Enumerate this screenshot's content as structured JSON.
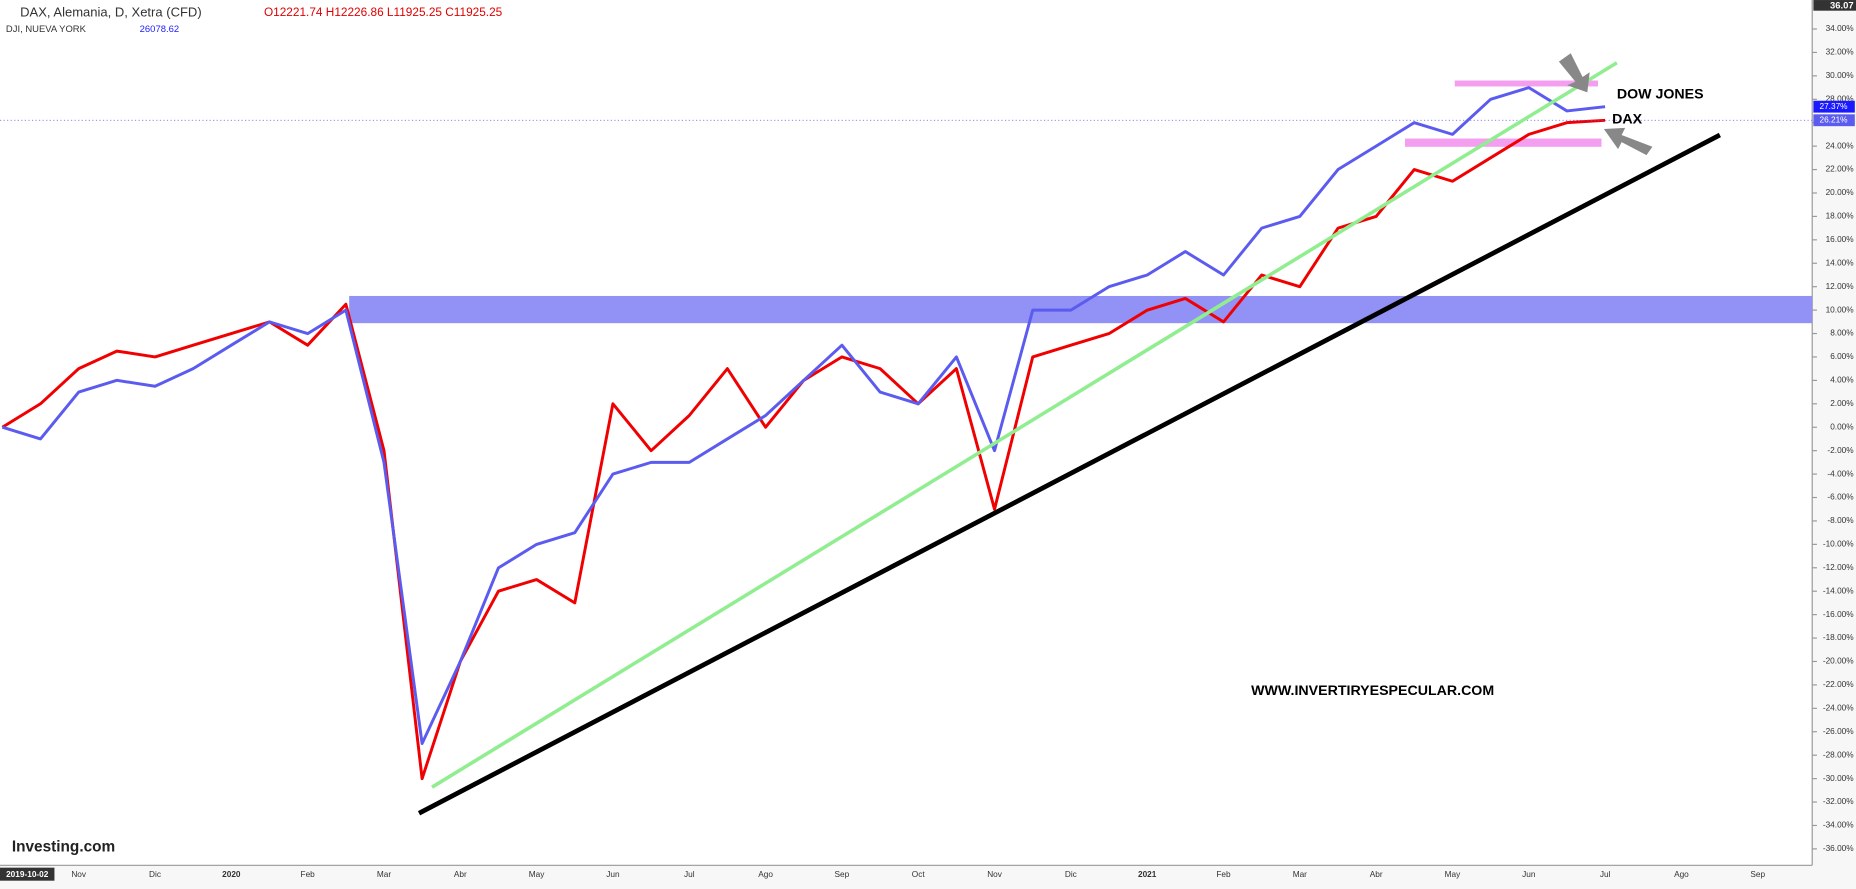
{
  "chart_data": {
    "type": "line",
    "categories": [
      "2019-10-02",
      null,
      "Nov",
      null,
      "Dic",
      null,
      "2020",
      null,
      "Feb",
      null,
      "Mar",
      null,
      "Abr",
      null,
      "May",
      null,
      "Jun",
      null,
      "Jul",
      null,
      "Ago",
      null,
      "Sep",
      null,
      "Oct",
      null,
      "Nov",
      null,
      "Dic",
      null,
      "2021",
      null,
      "Feb",
      null,
      "Mar",
      null,
      "Abr",
      null,
      "May",
      null,
      "Jun",
      null,
      "Jul",
      null,
      "Ago",
      null,
      "Sep"
    ],
    "series": [
      {
        "name": "DAX, Alemania, D, Xetra (CFD)",
        "color": "#f00000",
        "values": [
          0,
          2,
          5,
          6.5,
          6,
          7,
          8,
          9,
          7,
          10.5,
          -2,
          -30,
          -20,
          -14,
          -13,
          -15,
          2,
          -2,
          1,
          5,
          0,
          4,
          6,
          5,
          2,
          5,
          -7,
          6,
          7,
          8,
          10,
          11,
          9,
          13,
          12,
          17,
          18,
          22,
          21,
          23,
          25,
          26,
          26.21,
          null,
          null,
          null,
          null
        ],
        "value_labels": [
          null,
          null,
          null,
          null,
          null,
          null,
          null,
          null,
          null,
          null,
          null,
          null,
          null,
          null,
          null,
          null,
          null,
          null,
          null,
          null,
          null,
          null,
          null,
          null,
          null,
          null,
          null,
          null,
          null,
          null,
          null,
          null,
          null,
          null,
          null,
          null,
          null,
          null,
          null,
          null,
          null,
          null,
          "26.21%",
          null,
          null,
          null,
          null
        ]
      },
      {
        "name": "DJI, NUEVA YORK",
        "color": "#5b5bf0",
        "values": [
          0,
          -1,
          3,
          4,
          3.5,
          5,
          7,
          9,
          8,
          10,
          -3,
          -27,
          -20,
          -12,
          -10,
          -9,
          -4,
          -3,
          -3,
          -1,
          1,
          4,
          7,
          3,
          2,
          6,
          -2,
          10,
          10,
          12,
          13,
          15,
          13,
          17,
          18,
          22,
          24,
          26,
          25,
          28,
          29,
          27,
          27.37,
          null,
          null,
          null,
          null
        ],
        "value_labels": [
          null,
          null,
          null,
          null,
          null,
          null,
          null,
          null,
          null,
          null,
          null,
          null,
          null,
          null,
          null,
          null,
          null,
          null,
          null,
          null,
          null,
          null,
          null,
          null,
          null,
          null,
          null,
          null,
          null,
          null,
          null,
          null,
          null,
          null,
          null,
          null,
          null,
          null,
          null,
          null,
          null,
          null,
          "27.37%",
          null,
          null,
          null,
          null
        ]
      }
    ],
    "ohlc": "O12221.74 H12226.86 L11925.25 C11925.25",
    "dji_last": "26078.62",
    "ylim": [
      -37.3,
      36.07
    ],
    "yticks": [
      {
        "value": -36,
        "label": "-36.00%"
      },
      {
        "value": -34,
        "label": "-34.00%"
      },
      {
        "value": -32,
        "label": "-32.00%"
      },
      {
        "value": -30,
        "label": "-30.00%"
      },
      {
        "value": -28,
        "label": "-28.00%"
      },
      {
        "value": -26,
        "label": "-26.00%"
      },
      {
        "value": -24,
        "label": "-24.00%"
      },
      {
        "value": -22,
        "label": "-22.00%"
      },
      {
        "value": -20,
        "label": "-20.00%"
      },
      {
        "value": -18,
        "label": "-18.00%"
      },
      {
        "value": -16,
        "label": "-16.00%"
      },
      {
        "value": -14,
        "label": "-14.00%"
      },
      {
        "value": -12,
        "label": "-12.00%"
      },
      {
        "value": -10,
        "label": "-10.00%"
      },
      {
        "value": -8,
        "label": "-8.00%"
      },
      {
        "value": -6,
        "label": "-6.00%"
      },
      {
        "value": -4,
        "label": "-4.00%"
      },
      {
        "value": -2,
        "label": "-2.00%"
      },
      {
        "value": 0,
        "label": "0.00%"
      },
      {
        "value": 2,
        "label": "2.00%"
      },
      {
        "value": 4,
        "label": "4.00%"
      },
      {
        "value": 6,
        "label": "6.00%"
      },
      {
        "value": 8,
        "label": "8.00%"
      },
      {
        "value": 10,
        "label": "10.00%"
      },
      {
        "value": 12,
        "label": "12.00%"
      },
      {
        "value": 14,
        "label": "14.00%"
      },
      {
        "value": 16,
        "label": "16.00%"
      },
      {
        "value": 18,
        "label": "18.00%"
      },
      {
        "value": 20,
        "label": "20.00%"
      },
      {
        "value": 22,
        "label": "22.00%"
      },
      {
        "value": 24,
        "label": "24.00%"
      },
      {
        "value": 26,
        "label": "26.00%"
      },
      {
        "value": 28,
        "label": "28.00%"
      },
      {
        "value": 30,
        "label": "30.00%"
      },
      {
        "value": 32,
        "label": "32.00%"
      },
      {
        "value": 34,
        "label": "34.00%"
      }
    ],
    "annotations": [
      "DOW JONES",
      "DAX",
      "WWW.INVERTIRYESPECULAR.COM",
      "Investing.com"
    ]
  }
}
